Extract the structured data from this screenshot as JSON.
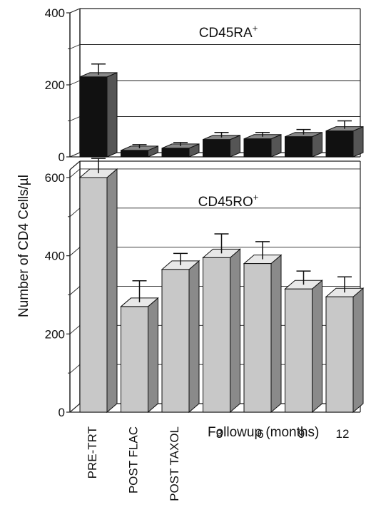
{
  "chart_data": {
    "type": "bar",
    "style": "3d",
    "ylabel": "Number of CD4 Cells/µl",
    "xlabel": "Followup (months)",
    "categories": [
      "PRE-TRT",
      "POST FLAC",
      "POST TAXOL",
      "3",
      "6",
      "9",
      "12"
    ],
    "panels": [
      {
        "title": "CD45RA",
        "title_superscript": "+",
        "bar_color": "#111111",
        "ylim": [
          0,
          400
        ],
        "yticks": [
          "0",
          "200",
          "400"
        ],
        "values": [
          222,
          18,
          24,
          48,
          50,
          56,
          72
        ],
        "errors": [
          30,
          10,
          10,
          14,
          12,
          14,
          22
        ]
      },
      {
        "title": "CD45RO",
        "title_superscript": "+",
        "bar_color": "#c8c8c8",
        "ylim": [
          0,
          620
        ],
        "yticks": [
          "0",
          "200",
          "400",
          "600"
        ],
        "values": [
          600,
          270,
          365,
          395,
          380,
          315,
          295
        ],
        "errors": [
          38,
          55,
          30,
          50,
          45,
          35,
          40
        ]
      }
    ]
  }
}
